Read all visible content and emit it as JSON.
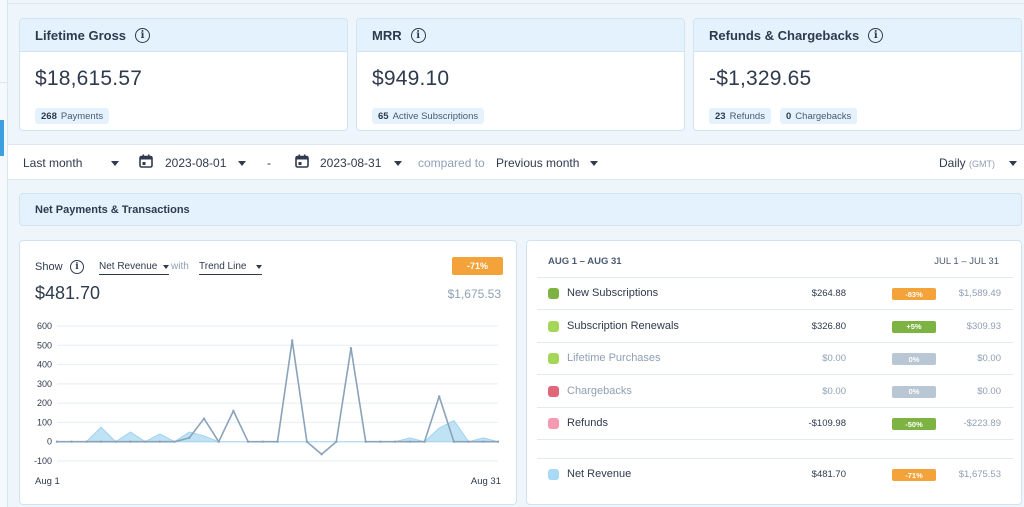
{
  "cards": [
    {
      "title": "Lifetime Gross",
      "value": "$18,615.57",
      "pills": [
        {
          "num": "268",
          "text": "Payments"
        }
      ]
    },
    {
      "title": "MRR",
      "value": "$949.10",
      "pills": [
        {
          "num": "65",
          "text": "Active Subscriptions"
        }
      ]
    },
    {
      "title": "Refunds & Chargebacks",
      "value": "-$1,329.65",
      "pills": [
        {
          "num": "23",
          "text": "Refunds"
        },
        {
          "num": "0",
          "text": "Chargebacks"
        }
      ]
    }
  ],
  "filters": {
    "range": "Last month",
    "start_date": "2023-08-01",
    "separator": "-",
    "end_date": "2023-08-31",
    "compared_to_label": "compared to",
    "comparison": "Previous month",
    "interval": "Daily",
    "timezone": "(GMT)"
  },
  "section_title": "Net Payments & Transactions",
  "chart_panel": {
    "show_label": "Show",
    "metric": "Net Revenue",
    "with_label": "with",
    "overlay": "Trend Line",
    "change_badge": "-71%",
    "current_value": "$481.70",
    "previous_value": "$1,675.53"
  },
  "chart_data": {
    "type": "line",
    "x_start_label": "Aug 1",
    "x_end_label": "Aug 31",
    "ylim": [
      -100,
      600
    ],
    "yticks": [
      600,
      500,
      400,
      300,
      200,
      100,
      0,
      -100
    ],
    "grid": true,
    "x": [
      1,
      2,
      3,
      4,
      5,
      6,
      7,
      8,
      9,
      10,
      11,
      12,
      13,
      14,
      15,
      16,
      17,
      18,
      19,
      20,
      21,
      22,
      23,
      24,
      25,
      26,
      27,
      28,
      29,
      30,
      31
    ],
    "series": [
      {
        "values": [
          0,
          0,
          0,
          75,
          0,
          50,
          0,
          40,
          0,
          50,
          30,
          0,
          0,
          0,
          0,
          0,
          0,
          0,
          0,
          0,
          0,
          0,
          0,
          0,
          20,
          0,
          70,
          110,
          0,
          20,
          0
        ]
      },
      {
        "values": [
          0,
          0,
          0,
          0,
          0,
          0,
          0,
          0,
          0,
          20,
          120,
          0,
          160,
          0,
          0,
          0,
          525,
          0,
          -65,
          0,
          485,
          0,
          0,
          0,
          0,
          0,
          235,
          0,
          0,
          0,
          0
        ]
      }
    ],
    "colors": {
      "area": "#bfe3f5",
      "area_stroke": "#9fd3ef",
      "line": "#8aa3bb"
    }
  },
  "table": {
    "current_header": "AUG 1 – AUG 31",
    "previous_header": "JUL 1 – JUL 31",
    "rows": [
      {
        "label": "New Subscriptions",
        "amount": "$264.88",
        "change": "-83%",
        "previous": "$1,589.49",
        "color": "#7cb342",
        "change_color": "#f3a33a"
      },
      {
        "label": "Subscription Renewals",
        "amount": "$326.80",
        "change": "+5%",
        "previous": "$309.93",
        "color": "#a5d65a",
        "change_color": "#7cb342"
      },
      {
        "label": "Lifetime Purchases",
        "amount": "$0.00",
        "change": "0%",
        "previous": "$0.00",
        "color": "#a5d65a",
        "change_color": "#b9c6d3"
      },
      {
        "label": "Chargebacks",
        "amount": "$0.00",
        "change": "0%",
        "previous": "$0.00",
        "color": "#e0677a",
        "change_color": "#b9c6d3"
      },
      {
        "label": "Refunds",
        "amount": "-$109.98",
        "change": "-50%",
        "previous": "-$223.89",
        "color": "#f59ab0",
        "change_color": "#7cb342"
      }
    ],
    "total": {
      "label": "Net Revenue",
      "amount": "$481.70",
      "change": "-71%",
      "previous": "$1,675.53",
      "color": "#a8daf5",
      "change_color": "#f3a33a"
    }
  }
}
